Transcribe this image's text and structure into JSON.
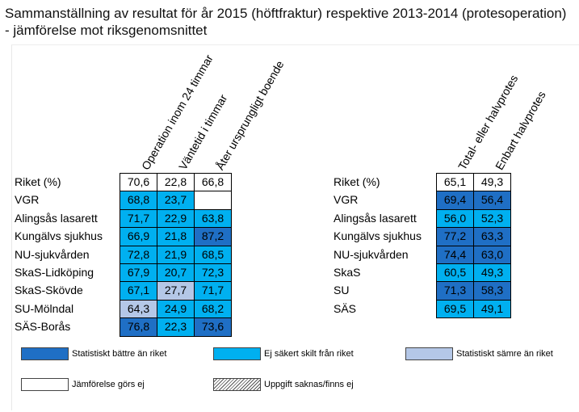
{
  "title": "Sammanställning av resultat för år 2015 (höftfraktur) respektive 2013-2014 (protesoperation) - jämförelse mot riksgenomsnittet",
  "colors": {
    "better": "#1f6fc5",
    "not_separate": "#00b0f0",
    "worse": "#b4c7e7",
    "no_compare": "#ffffff"
  },
  "chart_data": [
    {
      "type": "table",
      "name": "Höftfraktur (2015)",
      "columns": [
        "Operation inom 24 timmar",
        "Väntetid i timmar",
        "Åter ursprungligt boende"
      ],
      "rows": [
        {
          "label": "Riket (%)",
          "values": [
            "70,6",
            "22,8",
            "66,8"
          ],
          "status": [
            "no_compare",
            "no_compare",
            "no_compare"
          ]
        },
        {
          "label": "VGR",
          "values": [
            "68,8",
            "23,7",
            ""
          ],
          "status": [
            "not_separate",
            "not_separate",
            "no_compare"
          ]
        },
        {
          "label": "Alingsås lasarett",
          "values": [
            "71,7",
            "22,9",
            "63,8"
          ],
          "status": [
            "not_separate",
            "not_separate",
            "not_separate"
          ]
        },
        {
          "label": "Kungälvs sjukhus",
          "values": [
            "66,9",
            "21,8",
            "87,2"
          ],
          "status": [
            "not_separate",
            "not_separate",
            "better"
          ]
        },
        {
          "label": "NU-sjukvården",
          "values": [
            "72,8",
            "21,9",
            "68,5"
          ],
          "status": [
            "not_separate",
            "not_separate",
            "not_separate"
          ]
        },
        {
          "label": "SkaS-Lidköping",
          "values": [
            "67,9",
            "20,7",
            "72,3"
          ],
          "status": [
            "not_separate",
            "not_separate",
            "not_separate"
          ]
        },
        {
          "label": "SkaS-Skövde",
          "values": [
            "67,1",
            "27,7",
            "71,7"
          ],
          "status": [
            "not_separate",
            "worse",
            "not_separate"
          ]
        },
        {
          "label": "SU-Mölndal",
          "values": [
            "64,3",
            "24,9",
            "68,2"
          ],
          "status": [
            "worse",
            "not_separate",
            "not_separate"
          ]
        },
        {
          "label": "SÄS-Borås",
          "values": [
            "76,8",
            "22,3",
            "73,6"
          ],
          "status": [
            "better",
            "not_separate",
            "better"
          ]
        }
      ]
    },
    {
      "type": "table",
      "name": "Protesoperation (2013-2014)",
      "columns": [
        "Total- eller halvprotes",
        "Enbart halvprotes"
      ],
      "rows": [
        {
          "label": "Riket (%)",
          "values": [
            "65,1",
            "49,3"
          ],
          "status": [
            "no_compare",
            "no_compare"
          ]
        },
        {
          "label": "VGR",
          "values": [
            "69,4",
            "56,4"
          ],
          "status": [
            "better",
            "better"
          ]
        },
        {
          "label": "Alingsås lasarett",
          "values": [
            "56,0",
            "52,3"
          ],
          "status": [
            "not_separate",
            "not_separate"
          ]
        },
        {
          "label": "Kungälvs sjukhus",
          "values": [
            "77,2",
            "63,3"
          ],
          "status": [
            "better",
            "better"
          ]
        },
        {
          "label": "NU-sjukvården",
          "values": [
            "74,4",
            "63,0"
          ],
          "status": [
            "better",
            "better"
          ]
        },
        {
          "label": "SkaS",
          "values": [
            "60,5",
            "49,3"
          ],
          "status": [
            "not_separate",
            "not_separate"
          ]
        },
        {
          "label": "SU",
          "values": [
            "71,3",
            "58,3"
          ],
          "status": [
            "better",
            "better"
          ]
        },
        {
          "label": "SÄS",
          "values": [
            "69,5",
            "49,1"
          ],
          "status": [
            "not_separate",
            "not_separate"
          ]
        }
      ]
    }
  ],
  "legend": [
    {
      "key": "better",
      "label": "Statistiskt bättre än riket"
    },
    {
      "key": "not_separate",
      "label": "Ej säkert skilt från riket"
    },
    {
      "key": "worse",
      "label": "Statistiskt sämre än riket"
    },
    {
      "key": "no_compare",
      "label": "Jämförelse görs ej"
    },
    {
      "key": "missing",
      "label": "Uppgift saknas/finns ej"
    }
  ]
}
